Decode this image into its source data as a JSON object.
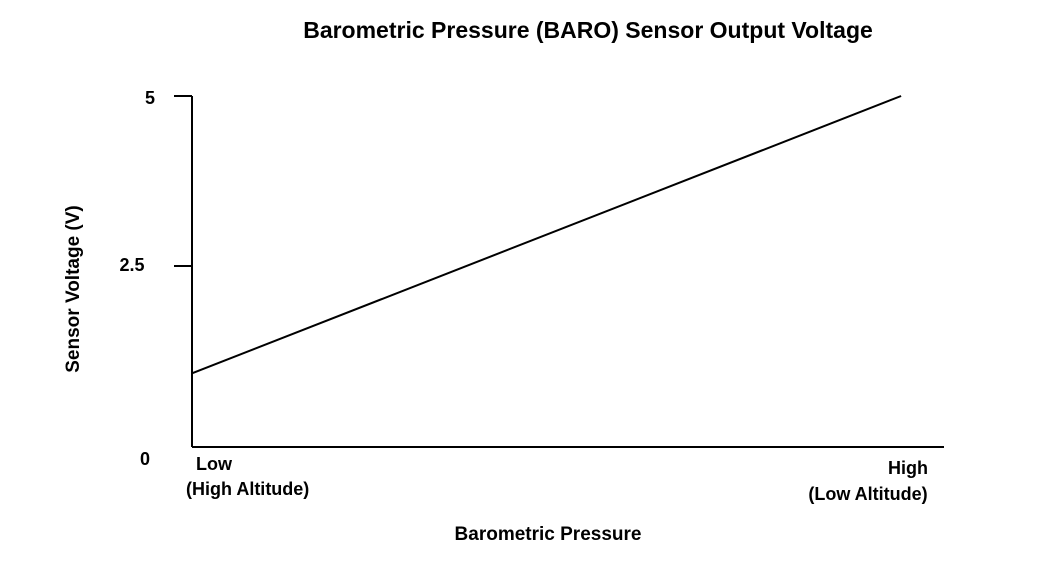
{
  "chart_data": {
    "type": "line",
    "title": "Barometric Pressure (BARO) Sensor Output Voltage",
    "xlabel": "Barometric Pressure",
    "ylabel": "Sensor Voltage (V)",
    "x_tick_labels": {
      "low": [
        "Low",
        "(High Altitude)"
      ],
      "high": [
        "High",
        "(Low Altitude)"
      ]
    },
    "y_ticks": [
      {
        "value": 5,
        "label": "5"
      },
      {
        "value": 2.5,
        "label": "2.5"
      },
      {
        "value": 0,
        "label": "0"
      }
    ],
    "ylim": [
      0,
      5
    ],
    "xlim": [
      0,
      1
    ],
    "series": [
      {
        "x": [
          0,
          0.943
        ],
        "y": [
          1.05,
          5.0
        ]
      }
    ],
    "grid": false,
    "legend": "none",
    "colors": {
      "line": "#000000",
      "axis": "#000000",
      "text": "#000000"
    }
  }
}
